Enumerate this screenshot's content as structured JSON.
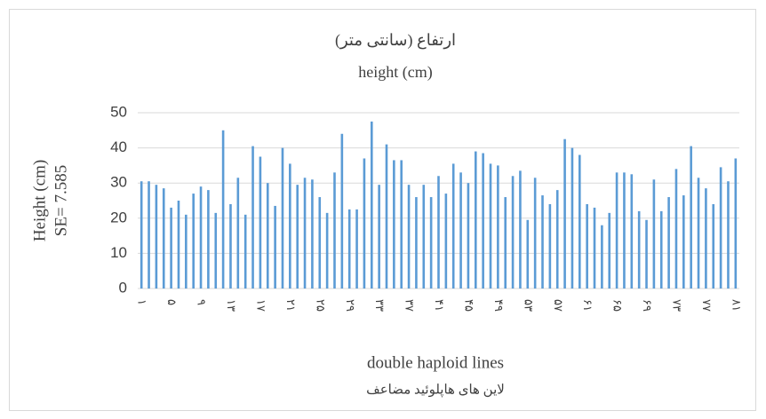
{
  "chart_data": {
    "type": "bar",
    "title": [
      "ارتفاع (سانتی متر)",
      "height (cm)"
    ],
    "y_label": [
      "Height (cm)",
      "SE= 7.585"
    ],
    "x_label": [
      "double haploid lines",
      "لاین های هاپلوئید مضاعف"
    ],
    "categories": [
      "۱",
      null,
      null,
      null,
      "۵",
      null,
      null,
      null,
      "۹",
      null,
      null,
      null,
      "۱۳",
      null,
      null,
      null,
      "۱۷",
      null,
      null,
      null,
      "۲۱",
      null,
      null,
      null,
      "۲۵",
      null,
      null,
      null,
      "۲۹",
      null,
      null,
      null,
      "۳۳",
      null,
      null,
      null,
      "۳۷",
      null,
      null,
      null,
      "۴۱",
      null,
      null,
      null,
      "۴۵",
      null,
      null,
      null,
      "۴۹",
      null,
      null,
      null,
      "۵۳",
      null,
      null,
      null,
      "۵۷",
      null,
      null,
      null,
      "۶۱",
      null,
      null,
      null,
      "۶۵",
      null,
      null,
      null,
      "۶۹",
      null,
      null,
      null,
      "۷۳",
      null,
      null,
      null,
      "۷۷",
      null,
      null,
      null,
      "۸۱"
    ],
    "values": [
      30.5,
      30.5,
      29.5,
      28.5,
      23,
      25,
      21,
      27,
      29,
      28,
      21.5,
      45,
      24,
      31.5,
      21,
      40.5,
      37.5,
      30,
      23.5,
      40,
      35.5,
      29.5,
      31.5,
      31,
      26,
      21.5,
      33,
      44,
      22.5,
      22.5,
      37,
      47.5,
      29.5,
      41,
      36.5,
      36.5,
      29.5,
      26,
      29.5,
      26,
      32,
      27,
      35.5,
      33,
      30,
      39,
      38.5,
      35.5,
      35,
      26,
      32,
      33.5,
      19.5,
      31.5,
      26.5,
      24,
      28,
      42.5,
      40,
      38,
      24,
      23,
      18,
      21.5,
      33,
      33,
      32.5,
      22,
      19.5,
      31,
      22,
      26,
      34,
      26.5,
      40.5,
      31.5,
      28.5,
      24,
      34.5,
      30.5,
      37
    ],
    "color": "#5b9bd5",
    "ylim": [
      0,
      50
    ],
    "yticks": [
      0,
      10,
      20,
      30,
      40,
      50
    ],
    "grid": true
  }
}
